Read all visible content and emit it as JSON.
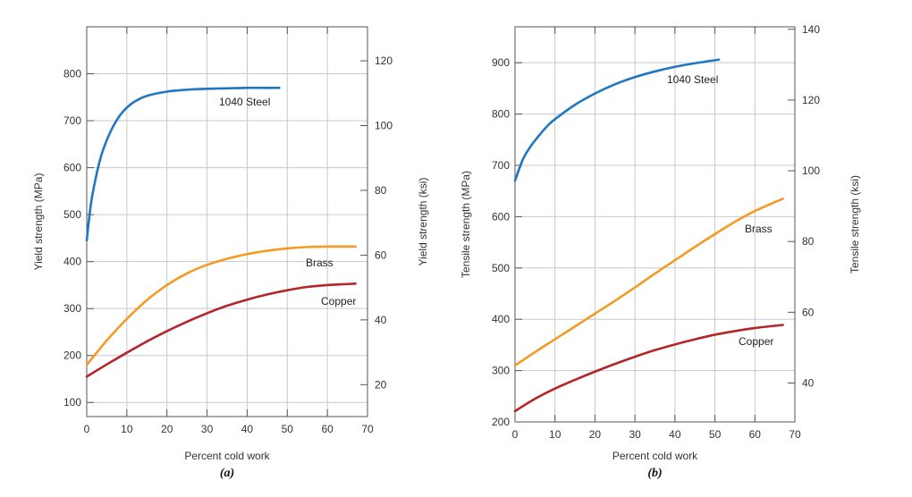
{
  "chart_data": [
    {
      "type": "line",
      "panel": "(a)",
      "xlabel": "Percent cold work",
      "ylabel": "Yield strength (MPa)",
      "y2label": "Yield strength (ksi)",
      "xlim": [
        0,
        70
      ],
      "ylim": [
        70,
        900
      ],
      "y2lim": [
        10.15,
        130.5
      ],
      "xticks": [
        0,
        10,
        20,
        30,
        40,
        50,
        60,
        70
      ],
      "yticks": [
        100,
        200,
        300,
        400,
        500,
        600,
        700,
        800
      ],
      "y2ticks": [
        20,
        40,
        60,
        80,
        100,
        120
      ],
      "grid": true,
      "series": [
        {
          "name": "1040 Steel",
          "color": "#1f77c4",
          "x": [
            0,
            1,
            2,
            3,
            4,
            6,
            8,
            10,
            12,
            15,
            20,
            25,
            30,
            35,
            40,
            45,
            48
          ],
          "y": [
            445,
            520,
            568,
            606,
            636,
            678,
            708,
            728,
            741,
            753,
            762,
            766,
            768,
            769,
            770,
            770,
            770
          ]
        },
        {
          "name": "Brass",
          "color": "#f59a23",
          "x": [
            0,
            5,
            10,
            15,
            20,
            25,
            30,
            35,
            40,
            45,
            50,
            55,
            60,
            67
          ],
          "y": [
            180,
            232,
            278,
            318,
            350,
            375,
            393,
            406,
            416,
            423,
            428,
            431,
            432,
            432
          ]
        },
        {
          "name": "Copper",
          "color": "#b5252a",
          "x": [
            0,
            5,
            10,
            15,
            20,
            25,
            30,
            35,
            40,
            45,
            50,
            55,
            60,
            67
          ],
          "y": [
            155,
            181,
            206,
            230,
            252,
            272,
            290,
            306,
            319,
            330,
            339,
            346,
            350,
            353
          ]
        }
      ]
    },
    {
      "type": "line",
      "panel": "(b)",
      "xlabel": "Percent cold work",
      "ylabel": "Tensile strength (MPa)",
      "y2label": "Tensile strength (ksi)",
      "xlim": [
        0,
        70
      ],
      "ylim": [
        200,
        970
      ],
      "y2lim": [
        29.0,
        140.7
      ],
      "xticks": [
        0,
        10,
        20,
        30,
        40,
        50,
        60,
        70
      ],
      "yticks": [
        200,
        300,
        400,
        500,
        600,
        700,
        800,
        900
      ],
      "y2ticks": [
        40,
        60,
        80,
        100,
        120,
        140
      ],
      "grid": true,
      "series": [
        {
          "name": "1040 Steel",
          "color": "#1f77c4",
          "x": [
            0,
            2,
            4,
            6,
            8,
            10,
            15,
            20,
            25,
            30,
            35,
            40,
            45,
            51
          ],
          "y": [
            670,
            712,
            738,
            758,
            776,
            790,
            818,
            840,
            858,
            872,
            883,
            892,
            899,
            906
          ]
        },
        {
          "name": "Brass",
          "color": "#f59a23",
          "x": [
            0,
            5,
            10,
            15,
            20,
            25,
            30,
            35,
            40,
            45,
            50,
            55,
            60,
            67
          ],
          "y": [
            310,
            336,
            361,
            386,
            411,
            436,
            462,
            489,
            515,
            541,
            566,
            590,
            611,
            635
          ]
        },
        {
          "name": "Copper",
          "color": "#b5252a",
          "x": [
            0,
            5,
            10,
            15,
            20,
            25,
            30,
            35,
            40,
            45,
            50,
            55,
            60,
            67
          ],
          "y": [
            221,
            245,
            265,
            282,
            298,
            313,
            327,
            340,
            351,
            361,
            370,
            377,
            383,
            389
          ]
        }
      ]
    }
  ]
}
